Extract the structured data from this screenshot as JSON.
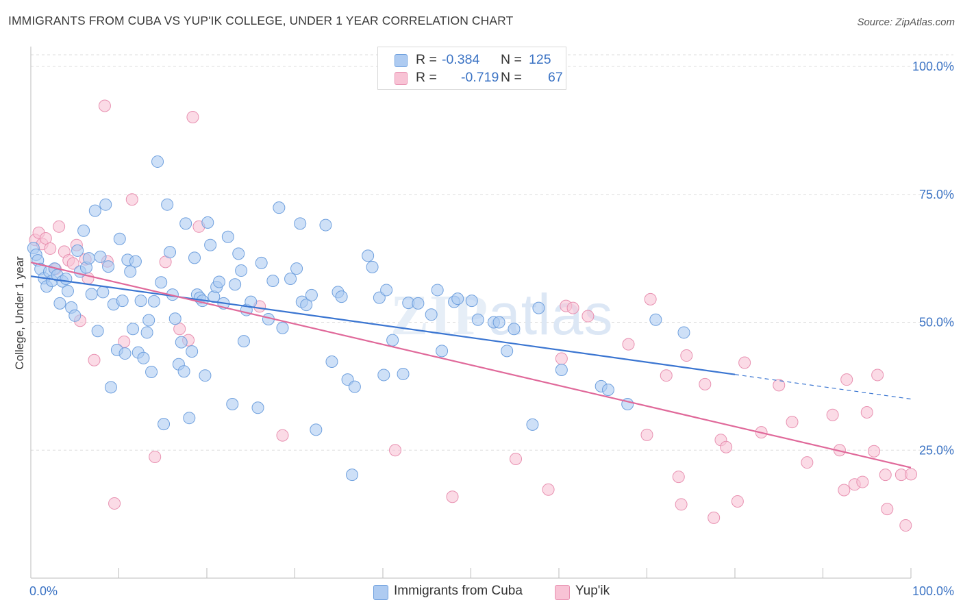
{
  "title": "IMMIGRANTS FROM CUBA VS YUP'IK COLLEGE, UNDER 1 YEAR CORRELATION CHART",
  "source": "Source: ZipAtlas.com",
  "legend": {
    "rows": [
      {
        "r_label": "R =",
        "r_value": "-0.384",
        "n_label": "N =",
        "n_value": "125"
      },
      {
        "r_label": "R =",
        "r_value": "-0.719",
        "n_label": "N =",
        "n_value": "67"
      }
    ]
  },
  "bottom_legend": [
    "Immigrants from Cuba",
    "Yup'ik"
  ],
  "watermark": "ZIPatlas",
  "chart_data": {
    "type": "scatter",
    "xlabel": "",
    "ylabel": "College, Under 1 year",
    "xlim": [
      0,
      100
    ],
    "ylim": [
      0,
      100
    ],
    "x_tick_labels": [
      "0.0%",
      "100.0%"
    ],
    "y_tick_labels": [
      "25.0%",
      "50.0%",
      "75.0%",
      "100.0%"
    ],
    "y_ticks": [
      25,
      50,
      75,
      100
    ],
    "grid": true,
    "legend_position": "top-center",
    "colors": {
      "cuba_fill": "#aecbf1",
      "cuba_stroke": "#6fa0de",
      "cuba_line": "#3a75d1",
      "yupik_fill": "#f8c3d5",
      "yupik_stroke": "#e891b1",
      "yupik_line": "#e0699a",
      "tick_label": "#3b73c4",
      "grid": "#dddddd"
    },
    "series": [
      {
        "name": "Immigrants from Cuba",
        "r": -0.384,
        "n": 125,
        "trend": {
          "x": [
            0,
            80
          ],
          "y": [
            59.0,
            39.8
          ],
          "dashed_to": [
            100,
            35.0
          ]
        },
        "points": [
          [
            0.3,
            64.5
          ],
          [
            0.6,
            63.2
          ],
          [
            0.8,
            62.1
          ],
          [
            1.1,
            60.4
          ],
          [
            1.5,
            58.6
          ],
          [
            1.8,
            57.0
          ],
          [
            2.1,
            59.9
          ],
          [
            2.4,
            58.1
          ],
          [
            2.7,
            60.5
          ],
          [
            3.0,
            59.2
          ],
          [
            3.3,
            53.7
          ],
          [
            3.6,
            58.0
          ],
          [
            4.0,
            58.5
          ],
          [
            4.2,
            56.1
          ],
          [
            4.6,
            52.9
          ],
          [
            5.0,
            51.3
          ],
          [
            5.3,
            64.0
          ],
          [
            5.6,
            59.9
          ],
          [
            6.0,
            67.9
          ],
          [
            6.3,
            60.7
          ],
          [
            6.6,
            62.5
          ],
          [
            6.9,
            55.5
          ],
          [
            7.3,
            71.8
          ],
          [
            7.6,
            48.3
          ],
          [
            7.9,
            62.8
          ],
          [
            8.2,
            55.9
          ],
          [
            8.5,
            73.0
          ],
          [
            8.8,
            60.9
          ],
          [
            9.1,
            37.3
          ],
          [
            9.4,
            53.5
          ],
          [
            9.8,
            44.6
          ],
          [
            10.1,
            66.3
          ],
          [
            10.4,
            54.2
          ],
          [
            10.7,
            43.9
          ],
          [
            11.0,
            62.2
          ],
          [
            11.3,
            59.9
          ],
          [
            11.6,
            48.7
          ],
          [
            11.9,
            61.9
          ],
          [
            12.2,
            44.1
          ],
          [
            12.5,
            54.2
          ],
          [
            12.8,
            43.0
          ],
          [
            13.2,
            48.0
          ],
          [
            13.4,
            50.4
          ],
          [
            13.7,
            40.3
          ],
          [
            14.0,
            54.1
          ],
          [
            14.4,
            81.4
          ],
          [
            14.8,
            57.8
          ],
          [
            15.1,
            30.1
          ],
          [
            15.5,
            73.0
          ],
          [
            15.8,
            63.7
          ],
          [
            16.1,
            55.4
          ],
          [
            16.4,
            50.7
          ],
          [
            16.8,
            41.8
          ],
          [
            17.1,
            46.1
          ],
          [
            17.4,
            40.4
          ],
          [
            17.6,
            69.3
          ],
          [
            18.0,
            31.3
          ],
          [
            18.3,
            44.3
          ],
          [
            18.6,
            62.6
          ],
          [
            18.9,
            55.4
          ],
          [
            19.2,
            54.8
          ],
          [
            19.5,
            54.2
          ],
          [
            19.8,
            39.6
          ],
          [
            20.1,
            69.5
          ],
          [
            20.4,
            65.1
          ],
          [
            20.8,
            55.0
          ],
          [
            21.1,
            56.9
          ],
          [
            21.4,
            57.9
          ],
          [
            21.9,
            53.7
          ],
          [
            22.4,
            66.7
          ],
          [
            22.9,
            34.0
          ],
          [
            23.2,
            57.4
          ],
          [
            23.6,
            63.4
          ],
          [
            23.9,
            60.1
          ],
          [
            24.2,
            46.3
          ],
          [
            24.5,
            52.4
          ],
          [
            25.0,
            54.0
          ],
          [
            25.8,
            33.3
          ],
          [
            26.2,
            61.6
          ],
          [
            27.0,
            50.6
          ],
          [
            27.5,
            58.1
          ],
          [
            28.2,
            72.4
          ],
          [
            28.6,
            48.9
          ],
          [
            29.5,
            58.5
          ],
          [
            30.2,
            60.5
          ],
          [
            30.6,
            69.3
          ],
          [
            30.8,
            54.0
          ],
          [
            31.3,
            53.4
          ],
          [
            31.9,
            55.3
          ],
          [
            32.4,
            29.0
          ],
          [
            33.5,
            69.0
          ],
          [
            34.2,
            42.3
          ],
          [
            34.9,
            55.9
          ],
          [
            35.3,
            55.0
          ],
          [
            36.0,
            38.8
          ],
          [
            36.5,
            20.2
          ],
          [
            36.8,
            37.4
          ],
          [
            38.3,
            63.0
          ],
          [
            38.8,
            60.8
          ],
          [
            39.6,
            54.8
          ],
          [
            40.1,
            39.7
          ],
          [
            40.4,
            56.3
          ],
          [
            41.1,
            46.5
          ],
          [
            42.3,
            39.9
          ],
          [
            42.9,
            53.8
          ],
          [
            44.0,
            53.7
          ],
          [
            45.5,
            51.5
          ],
          [
            46.2,
            56.3
          ],
          [
            46.7,
            44.4
          ],
          [
            48.1,
            54.0
          ],
          [
            48.5,
            54.6
          ],
          [
            50.1,
            54.2
          ],
          [
            50.8,
            50.5
          ],
          [
            52.6,
            50.0
          ],
          [
            53.2,
            50.0
          ],
          [
            54.1,
            44.4
          ],
          [
            54.9,
            48.7
          ],
          [
            57.0,
            30.0
          ],
          [
            57.7,
            52.8
          ],
          [
            60.3,
            40.7
          ],
          [
            64.8,
            37.5
          ],
          [
            65.6,
            36.8
          ],
          [
            67.8,
            34.0
          ],
          [
            71.0,
            50.5
          ],
          [
            74.2,
            48.0
          ]
        ]
      },
      {
        "name": "Yup'ik",
        "r": -0.719,
        "n": 67,
        "trend": {
          "x": [
            0,
            100
          ],
          "y": [
            61.7,
            21.6
          ]
        },
        "points": [
          [
            0.5,
            66.1
          ],
          [
            0.9,
            67.5
          ],
          [
            1.3,
            65.3
          ],
          [
            1.7,
            66.4
          ],
          [
            2.2,
            64.4
          ],
          [
            2.8,
            60.4
          ],
          [
            3.2,
            68.7
          ],
          [
            3.8,
            63.8
          ],
          [
            4.3,
            62.1
          ],
          [
            4.8,
            61.5
          ],
          [
            5.2,
            65.1
          ],
          [
            5.6,
            50.3
          ],
          [
            6.2,
            62.3
          ],
          [
            6.5,
            58.6
          ],
          [
            7.2,
            42.6
          ],
          [
            8.4,
            92.3
          ],
          [
            8.7,
            61.9
          ],
          [
            9.5,
            14.6
          ],
          [
            10.6,
            46.2
          ],
          [
            11.5,
            74.0
          ],
          [
            14.1,
            23.7
          ],
          [
            15.3,
            61.8
          ],
          [
            16.9,
            48.7
          ],
          [
            17.9,
            46.5
          ],
          [
            18.4,
            90.1
          ],
          [
            19.1,
            68.7
          ],
          [
            26.0,
            53.1
          ],
          [
            28.6,
            27.9
          ],
          [
            41.4,
            25.0
          ],
          [
            47.9,
            15.9
          ],
          [
            55.1,
            23.3
          ],
          [
            58.8,
            17.3
          ],
          [
            60.3,
            42.9
          ],
          [
            60.8,
            53.2
          ],
          [
            61.6,
            52.8
          ],
          [
            63.3,
            51.2
          ],
          [
            67.9,
            45.7
          ],
          [
            70.0,
            28.0
          ],
          [
            70.4,
            54.5
          ],
          [
            72.2,
            39.6
          ],
          [
            73.6,
            19.8
          ],
          [
            73.9,
            14.4
          ],
          [
            74.5,
            43.5
          ],
          [
            76.6,
            37.9
          ],
          [
            77.6,
            11.8
          ],
          [
            78.4,
            27.0
          ],
          [
            79.0,
            25.6
          ],
          [
            80.3,
            15.0
          ],
          [
            81.1,
            42.1
          ],
          [
            83.0,
            28.5
          ],
          [
            85.0,
            37.7
          ],
          [
            86.5,
            30.5
          ],
          [
            88.2,
            22.6
          ],
          [
            91.1,
            31.9
          ],
          [
            91.9,
            25.0
          ],
          [
            92.4,
            17.2
          ],
          [
            92.7,
            38.8
          ],
          [
            93.6,
            18.3
          ],
          [
            94.5,
            18.8
          ],
          [
            95.0,
            32.4
          ],
          [
            95.8,
            24.8
          ],
          [
            96.2,
            39.7
          ],
          [
            97.1,
            20.2
          ],
          [
            97.3,
            13.5
          ],
          [
            98.9,
            20.2
          ],
          [
            99.4,
            10.3
          ],
          [
            100.0,
            20.3
          ]
        ]
      }
    ]
  }
}
